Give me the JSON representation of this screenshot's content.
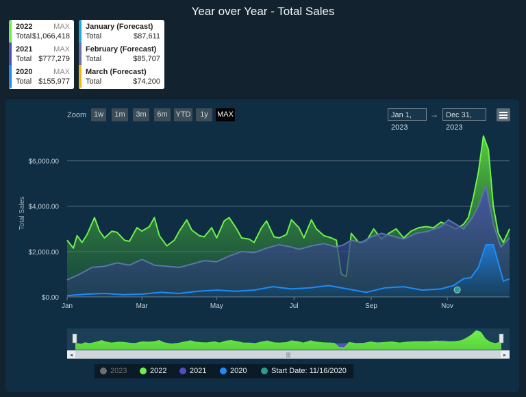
{
  "title": "Year over Year - Total Sales",
  "summary_left": [
    {
      "name": "2022",
      "tag": "MAX",
      "label": "Total",
      "value": "$1,066,418",
      "color": "#6ef04a"
    },
    {
      "name": "2021",
      "tag": "MAX",
      "label": "Total",
      "value": "$777,279",
      "color": "#4f4fbf"
    },
    {
      "name": "2020",
      "tag": "MAX",
      "label": "Total",
      "value": "$155,977",
      "color": "#1d8cf8"
    }
  ],
  "summary_right": [
    {
      "name": "January (Forecast)",
      "label": "Total",
      "value": "$87,611",
      "color": "#1da9dc"
    },
    {
      "name": "February (Forecast)",
      "label": "Total",
      "value": "$85,707",
      "color": "#6d6fa8"
    },
    {
      "name": "March (Forecast)",
      "label": "Total",
      "value": "$74,200",
      "color": "#f1b70f"
    }
  ],
  "zoom": {
    "label": "Zoom",
    "buttons": [
      "1w",
      "1m",
      "3m",
      "6m",
      "YTD",
      "1y",
      "MAX"
    ],
    "active": "MAX"
  },
  "range": {
    "from": "Jan 1, 2023",
    "arrow": "→",
    "to": "Dec 31, 2023"
  },
  "legend": [
    {
      "label": "2023",
      "color": "#6f6f6f",
      "muted": true
    },
    {
      "label": "2022",
      "color": "#6ef04a"
    },
    {
      "label": "2021",
      "color": "#4f4fbf"
    },
    {
      "label": "2020",
      "color": "#1d8cf8"
    },
    {
      "label": "Start Date: 11/16/2020",
      "color": "#2a9d8f"
    }
  ],
  "chart_data": {
    "type": "area",
    "ylabel": "Total Sales",
    "ylim": [
      0,
      7500
    ],
    "y_ticks": [
      "$0.00",
      "$2,000.00",
      "$4,000.00",
      "$6,000.00"
    ],
    "x_ticks": [
      "Jan",
      "Mar",
      "May",
      "Jul",
      "Sep",
      "Nov"
    ],
    "x_tick_days": [
      0,
      60,
      120,
      182,
      244,
      305
    ],
    "x_range_days": [
      0,
      355
    ],
    "grid": true,
    "series": [
      {
        "name": "2022",
        "color": "#6ef04a",
        "x": [
          0,
          5,
          8,
          12,
          16,
          22,
          26,
          30,
          36,
          40,
          46,
          50,
          56,
          60,
          66,
          70,
          74,
          80,
          86,
          90,
          96,
          100,
          106,
          110,
          116,
          120,
          126,
          130,
          136,
          140,
          146,
          150,
          156,
          160,
          166,
          170,
          176,
          180,
          186,
          190,
          196,
          200,
          206,
          212,
          216,
          220,
          224,
          228,
          234,
          240,
          246,
          252,
          258,
          264,
          270,
          276,
          282,
          288,
          294,
          300,
          306,
          312,
          318,
          322,
          326,
          330,
          334,
          338,
          342,
          346,
          350,
          355
        ],
        "values": [
          2500,
          2150,
          2700,
          2400,
          2750,
          3500,
          2900,
          2600,
          2900,
          2850,
          2500,
          2450,
          3050,
          2900,
          3100,
          3500,
          2700,
          2250,
          2500,
          2900,
          3400,
          2950,
          2700,
          2650,
          3050,
          2600,
          3350,
          3500,
          3000,
          2600,
          2550,
          2400,
          3050,
          3350,
          2650,
          2600,
          2750,
          3400,
          3050,
          2600,
          3400,
          3000,
          2700,
          2600,
          2500,
          1000,
          900,
          2800,
          2400,
          2450,
          3000,
          2550,
          2800,
          3000,
          2600,
          2900,
          3050,
          3100,
          3050,
          3300,
          3150,
          3000,
          3200,
          3500,
          4400,
          5500,
          7100,
          6500,
          4000,
          2800,
          2400,
          3000
        ]
      },
      {
        "name": "2021",
        "color": "#4f4fbf",
        "x": [
          0,
          10,
          20,
          30,
          40,
          50,
          60,
          70,
          80,
          90,
          100,
          110,
          120,
          130,
          140,
          150,
          160,
          170,
          180,
          186,
          196,
          206,
          216,
          222,
          228,
          236,
          244,
          252,
          260,
          270,
          280,
          290,
          300,
          306,
          312,
          318,
          324,
          330,
          336,
          342,
          348,
          355
        ],
        "values": [
          750,
          1000,
          1300,
          1350,
          1500,
          1400,
          1650,
          1400,
          1350,
          1300,
          1450,
          1600,
          1550,
          1800,
          2000,
          1950,
          2150,
          2300,
          2200,
          2100,
          2250,
          2350,
          2200,
          2300,
          2500,
          2400,
          2650,
          2800,
          2700,
          2550,
          2800,
          2900,
          3100,
          3400,
          3200,
          3000,
          3400,
          4000,
          4900,
          3200,
          2200,
          2600
        ]
      },
      {
        "name": "2020",
        "color": "#1d8cf8",
        "x": [
          0,
          15,
          30,
          45,
          60,
          75,
          90,
          105,
          120,
          135,
          150,
          165,
          180,
          195,
          210,
          225,
          240,
          255,
          270,
          285,
          300,
          310,
          318,
          324,
          330,
          336,
          342,
          346,
          350,
          355
        ],
        "values": [
          50,
          120,
          150,
          100,
          120,
          200,
          150,
          250,
          300,
          250,
          300,
          450,
          350,
          400,
          500,
          350,
          200,
          400,
          450,
          300,
          350,
          500,
          800,
          850,
          1300,
          2300,
          2300,
          1500,
          700,
          800
        ]
      }
    ],
    "marker": {
      "name": "Start Date: 11/16/2020",
      "x_day": 313,
      "y": 250
    }
  },
  "navigator": {
    "handle": "|||"
  }
}
